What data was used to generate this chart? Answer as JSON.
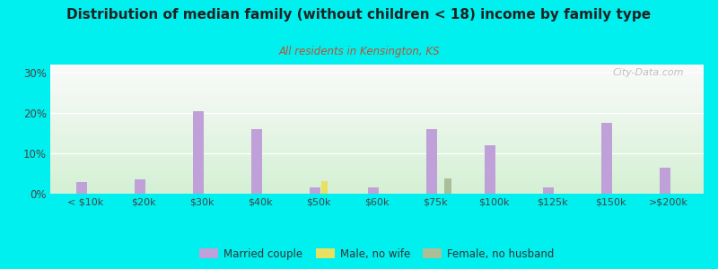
{
  "title": "Distribution of median family (without children < 18) income by family type",
  "subtitle": "All residents in Kensington, KS",
  "background_color": "#00EFEF",
  "categories": [
    "< $10k",
    "$20k",
    "$30k",
    "$40k",
    "$50k",
    "$60k",
    "$75k",
    "$100k",
    "$125k",
    "$150k",
    ">$200k"
  ],
  "married_couple": [
    3.0,
    3.5,
    20.5,
    16.0,
    1.5,
    1.5,
    16.0,
    12.0,
    1.5,
    17.5,
    6.5
  ],
  "male_no_wife": [
    0.0,
    0.0,
    0.0,
    0.0,
    3.2,
    0.0,
    0.0,
    0.0,
    0.0,
    0.0,
    0.0
  ],
  "female_no_husband": [
    0.0,
    0.0,
    0.0,
    0.0,
    0.0,
    0.0,
    3.8,
    0.0,
    0.0,
    0.0,
    0.0
  ],
  "married_color": "#c0a0d8",
  "male_color": "#e8e060",
  "female_color": "#aabe98",
  "ylim": [
    0,
    32
  ],
  "yticks": [
    0,
    10,
    20,
    30
  ],
  "ytick_labels": [
    "0%",
    "10%",
    "20%",
    "30%"
  ],
  "watermark": "City-Data.com",
  "legend_labels": [
    "Married couple",
    "Male, no wife",
    "Female, no husband"
  ],
  "title_color": "#222222",
  "subtitle_color": "#c05030",
  "tick_color": "#444444"
}
